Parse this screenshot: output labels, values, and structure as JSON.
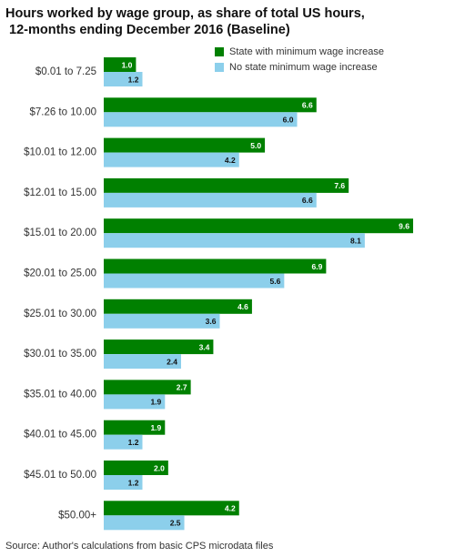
{
  "chart_data": {
    "type": "bar",
    "orientation": "horizontal",
    "title": [
      "Hours worked by wage group, as share of total US hours,",
      " 12-months ending December 2016 (Baseline)"
    ],
    "categories": [
      "$0.01 to 7.25",
      "$7.26 to 10.00",
      "$10.01 to 12.00",
      "$12.01 to 15.00",
      "$15.01 to 20.00",
      "$20.01 to 25.00",
      "$25.01 to 30.00",
      "$30.01 to 35.00",
      "$35.01 to 40.00",
      "$40.01 to 45.00",
      "$45.01 to 50.00",
      "$50.00+"
    ],
    "series": [
      {
        "name": "State with minimum wage increase",
        "color": "#008000",
        "values": [
          1.0,
          6.6,
          5.0,
          7.6,
          9.6,
          6.9,
          4.6,
          3.4,
          2.7,
          1.9,
          2.0,
          4.2
        ],
        "value_labels": [
          "1.0",
          "6.6",
          "5.0",
          "7.6",
          "9.6",
          "6.9",
          "4.6",
          "3.4",
          "2.7",
          "1.9",
          "2.0",
          "4.2"
        ]
      },
      {
        "name": "No state minimum wage increase",
        "color": "#8ccfeb",
        "values": [
          1.2,
          6.0,
          4.2,
          6.6,
          8.1,
          5.6,
          3.6,
          2.4,
          1.9,
          1.2,
          1.2,
          2.5
        ],
        "value_labels": [
          "1.2",
          "6.0",
          "4.2",
          "6.6",
          "8.1",
          "5.6",
          "3.6",
          "2.4",
          "1.9",
          "1.2",
          "1.2",
          "2.5"
        ]
      }
    ],
    "legend": "top-right",
    "source": "Source: Author's calculations from basic CPS microdata files"
  }
}
